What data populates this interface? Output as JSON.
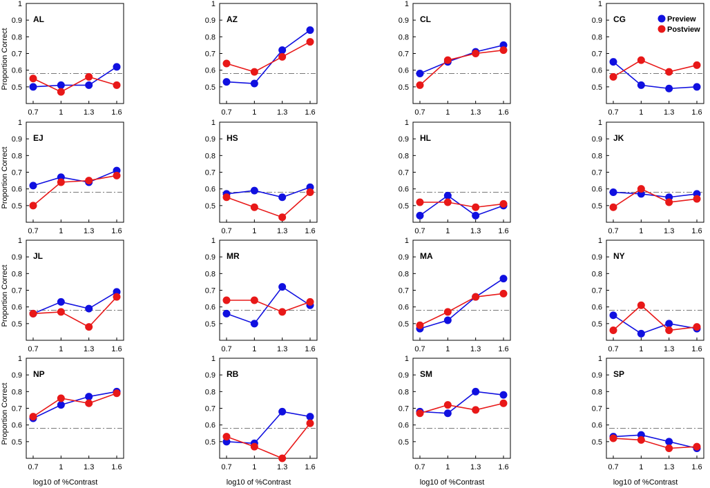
{
  "chart_data": {
    "type": "line",
    "x": [
      0.7,
      1,
      1.3,
      1.6
    ],
    "x_tick_labels": [
      "0.7",
      "1",
      "1.3",
      "1.6"
    ],
    "y_ticks": [
      0.5,
      0.6,
      0.7,
      0.8,
      0.9,
      1
    ],
    "y_tick_labels": [
      "0.5",
      "0.6",
      "0.7",
      "0.8",
      "0.9",
      "1"
    ],
    "ylim": [
      0.4,
      1
    ],
    "xlim": [
      0.7,
      1.6
    ],
    "ylabel": "Proportion Correct",
    "xlabel": "log10 of %Contrast",
    "reference_line": 0.58,
    "legend": {
      "placement": "top-right of last panel in first row",
      "entries": [
        {
          "name": "Preview",
          "color": "#1010e0"
        },
        {
          "name": "Postview",
          "color": "#e81818"
        }
      ]
    },
    "panels": [
      {
        "name": "AL",
        "series": [
          {
            "name": "Preview",
            "values": [
              0.5,
              0.51,
              0.51,
              0.62
            ]
          },
          {
            "name": "Postview",
            "values": [
              0.55,
              0.47,
              0.56,
              0.51
            ]
          }
        ]
      },
      {
        "name": "AZ",
        "series": [
          {
            "name": "Preview",
            "values": [
              0.53,
              0.52,
              0.72,
              0.84
            ]
          },
          {
            "name": "Postview",
            "values": [
              0.64,
              0.59,
              0.68,
              0.77
            ]
          }
        ]
      },
      {
        "name": "CL",
        "series": [
          {
            "name": "Preview",
            "values": [
              0.58,
              0.65,
              0.71,
              0.75
            ]
          },
          {
            "name": "Postview",
            "values": [
              0.51,
              0.66,
              0.7,
              0.72
            ]
          }
        ]
      },
      {
        "name": "CG",
        "series": [
          {
            "name": "Preview",
            "values": [
              0.65,
              0.51,
              0.49,
              0.5
            ]
          },
          {
            "name": "Postview",
            "values": [
              0.56,
              0.66,
              0.59,
              0.63
            ]
          }
        ]
      },
      {
        "name": "EJ",
        "series": [
          {
            "name": "Preview",
            "values": [
              0.62,
              0.67,
              0.64,
              0.71
            ]
          },
          {
            "name": "Postview",
            "values": [
              0.5,
              0.64,
              0.65,
              0.68
            ]
          }
        ]
      },
      {
        "name": "HS",
        "series": [
          {
            "name": "Preview",
            "values": [
              0.57,
              0.59,
              0.55,
              0.61
            ]
          },
          {
            "name": "Postview",
            "values": [
              0.55,
              0.49,
              0.43,
              0.58
            ]
          }
        ]
      },
      {
        "name": "HL",
        "series": [
          {
            "name": "Preview",
            "values": [
              0.44,
              0.56,
              0.44,
              0.5
            ]
          },
          {
            "name": "Postview",
            "values": [
              0.52,
              0.52,
              0.49,
              0.51
            ]
          }
        ]
      },
      {
        "name": "JK",
        "series": [
          {
            "name": "Preview",
            "values": [
              0.58,
              0.57,
              0.55,
              0.57
            ]
          },
          {
            "name": "Postview",
            "values": [
              0.49,
              0.6,
              0.52,
              0.54
            ]
          }
        ]
      },
      {
        "name": "JL",
        "series": [
          {
            "name": "Preview",
            "values": [
              0.56,
              0.63,
              0.59,
              0.69
            ]
          },
          {
            "name": "Postview",
            "values": [
              0.56,
              0.57,
              0.48,
              0.66
            ]
          }
        ]
      },
      {
        "name": "MR",
        "series": [
          {
            "name": "Preview",
            "values": [
              0.56,
              0.5,
              0.72,
              0.61
            ]
          },
          {
            "name": "Postview",
            "values": [
              0.64,
              0.64,
              0.57,
              0.63
            ]
          }
        ]
      },
      {
        "name": "MA",
        "series": [
          {
            "name": "Preview",
            "values": [
              0.47,
              0.52,
              0.66,
              0.77
            ]
          },
          {
            "name": "Postview",
            "values": [
              0.49,
              0.57,
              0.66,
              0.68
            ]
          }
        ]
      },
      {
        "name": "NY",
        "series": [
          {
            "name": "Preview",
            "values": [
              0.55,
              0.44,
              0.5,
              0.47
            ]
          },
          {
            "name": "Postview",
            "values": [
              0.46,
              0.61,
              0.46,
              0.48
            ]
          }
        ]
      },
      {
        "name": "NP",
        "series": [
          {
            "name": "Preview",
            "values": [
              0.64,
              0.72,
              0.77,
              0.8
            ]
          },
          {
            "name": "Postview",
            "values": [
              0.65,
              0.76,
              0.73,
              0.79
            ]
          }
        ]
      },
      {
        "name": "RB",
        "series": [
          {
            "name": "Preview",
            "values": [
              0.5,
              0.49,
              0.68,
              0.65
            ]
          },
          {
            "name": "Postview",
            "values": [
              0.53,
              0.47,
              0.4,
              0.61
            ]
          }
        ]
      },
      {
        "name": "SM",
        "series": [
          {
            "name": "Preview",
            "values": [
              0.68,
              0.67,
              0.8,
              0.78
            ]
          },
          {
            "name": "Postview",
            "values": [
              0.67,
              0.72,
              0.69,
              0.73
            ]
          }
        ]
      },
      {
        "name": "SP",
        "series": [
          {
            "name": "Preview",
            "values": [
              0.53,
              0.54,
              0.5,
              0.46
            ]
          },
          {
            "name": "Postview",
            "values": [
              0.52,
              0.51,
              0.46,
              0.47
            ]
          }
        ]
      }
    ]
  }
}
